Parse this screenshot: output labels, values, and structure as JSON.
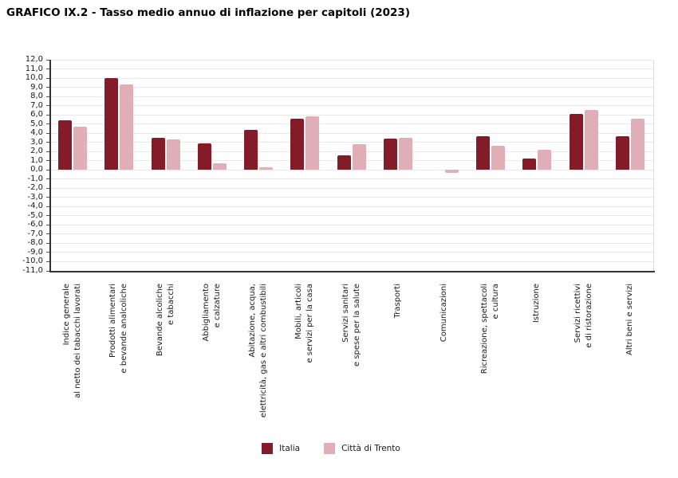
{
  "title": "GRAFICO IX.2 - Tasso medio annuo di inflazione per capitoli (2023)",
  "chart_data": {
    "type": "bar",
    "title": "GRAFICO IX.2 - Tasso medio annuo di inflazione per capitoli (2023)",
    "categories": [
      [
        "Indice generale",
        "al netto dei tabacchi lavorati"
      ],
      [
        "Prodotti alimentari",
        "e bevande analcoliche"
      ],
      [
        "Bevande alcoliche",
        "e tabacchi"
      ],
      [
        "Abbigliamento",
        "e calzature"
      ],
      [
        "Abitazione, acqua,",
        "elettricità, gas e altri combustibili"
      ],
      [
        "Mobili, articoli",
        "e servizi per la casa"
      ],
      [
        "Servizi sanitari",
        "e spese per la salute"
      ],
      [
        "Trasporti"
      ],
      [
        "Comunicazioni"
      ],
      [
        "Ricreazione, spettacoli",
        "e cultura"
      ],
      [
        "Istruzione"
      ],
      [
        "Servizi ricettivi",
        "e di ristorazione"
      ],
      [
        "Altri beni e servizi"
      ]
    ],
    "series": [
      {
        "name": "Italia",
        "color": "#841B28",
        "values": [
          5.4,
          10.0,
          3.5,
          2.9,
          4.4,
          5.6,
          1.6,
          3.4,
          0.0,
          3.7,
          1.2,
          6.1,
          3.7
        ]
      },
      {
        "name": "Città di Trento",
        "color": "#E0AEB6",
        "values": [
          4.7,
          9.3,
          3.3,
          0.7,
          0.3,
          5.8,
          2.8,
          3.5,
          -0.3,
          2.6,
          2.2,
          6.5,
          5.6
        ]
      }
    ],
    "ylim": [
      -11.0,
      12.0
    ],
    "ytick_step": 1.0,
    "ytick_decimal_separator": ",",
    "grid": true,
    "legend_position": "bottom",
    "xlabel": "",
    "ylabel": ""
  },
  "colors": {
    "italia": "#841B28",
    "trento": "#E0AEB6",
    "gridline": "#e9e9e9",
    "axis": "#333333"
  }
}
